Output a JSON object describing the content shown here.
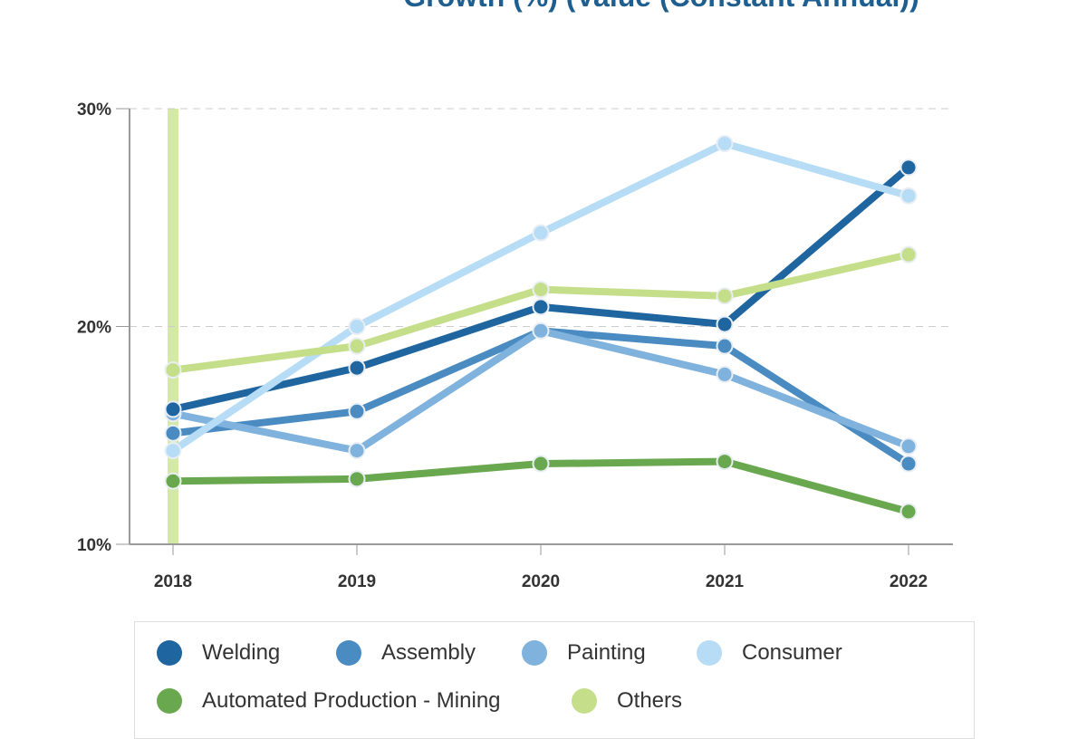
{
  "chart_data": {
    "type": "line",
    "title": "Growth (%) (Value (Constant Annual))",
    "categories": [
      "2018",
      "2019",
      "2020",
      "2021",
      "2022"
    ],
    "ylim": [
      10,
      30
    ],
    "yticks": [
      "10%",
      "20%",
      "30%"
    ],
    "grid": true,
    "legend_placement": "bottom",
    "highlight_category": "2018",
    "highlight_color": "#d4e8a8",
    "series": [
      {
        "name": "Welding",
        "color": "#1f65a0",
        "values": [
          16.2,
          18.1,
          20.9,
          20.1,
          27.3
        ]
      },
      {
        "name": "Assembly",
        "color": "#4a8bc2",
        "values": [
          15.1,
          16.1,
          19.8,
          19.1,
          13.7
        ]
      },
      {
        "name": "Painting",
        "color": "#7fb2dd",
        "values": [
          16.0,
          14.3,
          19.8,
          17.8,
          14.5
        ]
      },
      {
        "name": "Consumer",
        "color": "#b7dcf5",
        "values": [
          14.3,
          20.0,
          24.3,
          28.4,
          26.0
        ]
      },
      {
        "name": "Automated Production - Mining",
        "color": "#6aa84f",
        "values": [
          12.9,
          13.0,
          13.7,
          13.8,
          11.5
        ]
      },
      {
        "name": "Others",
        "color": "#c5de8a",
        "values": [
          18.0,
          19.1,
          21.7,
          21.4,
          23.3
        ]
      }
    ]
  }
}
